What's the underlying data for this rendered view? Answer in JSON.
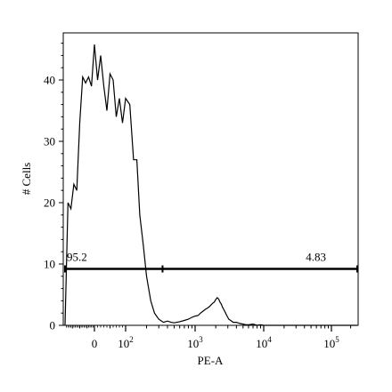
{
  "chart_data": {
    "type": "histogram",
    "xlabel": "PE-A",
    "ylabel": "# Cells",
    "ylim": [
      0,
      48
    ],
    "yticks": [
      0,
      10,
      20,
      30,
      40
    ],
    "xscale": "biexponential",
    "xticks": [
      {
        "value": 0,
        "base": "0",
        "exp": ""
      },
      {
        "value": 100,
        "base": "10",
        "exp": "2"
      },
      {
        "value": 1000,
        "base": "10",
        "exp": "3"
      },
      {
        "value": 10000,
        "base": "10",
        "exp": "4"
      },
      {
        "value": 100000,
        "base": "10",
        "exp": "5"
      }
    ],
    "gates": [
      {
        "label": "95.2",
        "x_start": -200,
        "x_end": 340,
        "y": 9.2
      },
      {
        "label": "4.83",
        "x_start": 340,
        "x_end": 262144,
        "y": 9.2
      }
    ],
    "histogram": {
      "x": [
        -200,
        -180,
        -160,
        -140,
        -120,
        -100,
        -80,
        -60,
        -40,
        -20,
        0,
        10,
        20,
        30,
        40,
        50,
        60,
        70,
        80,
        90,
        100,
        115,
        130,
        145,
        160,
        180,
        200,
        230,
        260,
        300,
        350,
        400,
        450,
        500,
        600,
        700,
        800,
        900,
        1000,
        1100,
        1200,
        1300,
        1400,
        1500,
        1600,
        1700,
        1800,
        1900,
        2000,
        2100,
        2200,
        2300,
        2400,
        2500,
        2700,
        2900,
        3100,
        3300,
        3600,
        4000,
        4500,
        5000,
        5500,
        6000,
        7000,
        8000,
        9000,
        10000,
        15000,
        30000,
        100000,
        262144
      ],
      "y": [
        0,
        20,
        19,
        23,
        22,
        33,
        40.5,
        39.5,
        40.5,
        39,
        45.8,
        40,
        44,
        39,
        35,
        41,
        40,
        34,
        37,
        33,
        37,
        36,
        27,
        27,
        18,
        13,
        8,
        4,
        2,
        1,
        0.5,
        0.7,
        0.5,
        0.4,
        0.6,
        0.8,
        1,
        1.3,
        1.5,
        1.6,
        2,
        2.3,
        2.6,
        2.8,
        3,
        3.3,
        3.6,
        3.8,
        4.2,
        4.5,
        4.3,
        3.8,
        3.5,
        3,
        2.3,
        1.6,
        1,
        0.8,
        0.5,
        0.5,
        0.3,
        0.2,
        0.1,
        0.1,
        0.2,
        0,
        0.1,
        0,
        0,
        0,
        0,
        0
      ]
    }
  }
}
